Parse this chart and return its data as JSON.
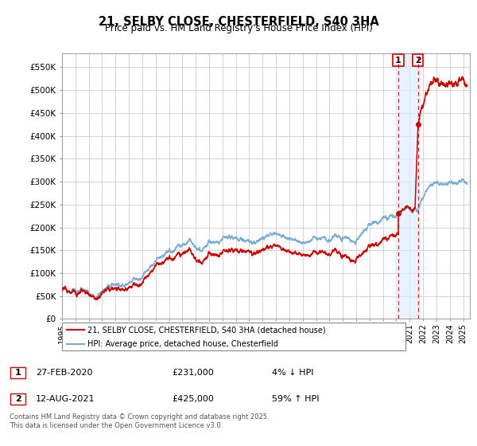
{
  "title": "21, SELBY CLOSE, CHESTERFIELD, S40 3HA",
  "subtitle": "Price paid vs. HM Land Registry's House Price Index (HPI)",
  "xlim_start": 1995.0,
  "xlim_end": 2025.5,
  "ylim_min": 0,
  "ylim_max": 580000,
  "hpi_color": "#7aadd4",
  "price_color": "#cc0000",
  "point1_date": 2020.15,
  "point1_value": 231000,
  "point2_date": 2021.62,
  "point2_value": 425000,
  "highlight_start": 2019.95,
  "highlight_end": 2021.75,
  "legend_label1": "21, SELBY CLOSE, CHESTERFIELD, S40 3HA (detached house)",
  "legend_label2": "HPI: Average price, detached house, Chesterfield",
  "table_row1": [
    "1",
    "27-FEB-2020",
    "£231,000",
    "4% ↓ HPI"
  ],
  "table_row2": [
    "2",
    "12-AUG-2021",
    "£425,000",
    "59% ↑ HPI"
  ],
  "footer": "Contains HM Land Registry data © Crown copyright and database right 2025.\nThis data is licensed under the Open Government Licence v3.0.",
  "grid_color": "#cccccc",
  "ytick_values": [
    0,
    50000,
    100000,
    150000,
    200000,
    250000,
    300000,
    350000,
    400000,
    450000,
    500000,
    550000
  ]
}
